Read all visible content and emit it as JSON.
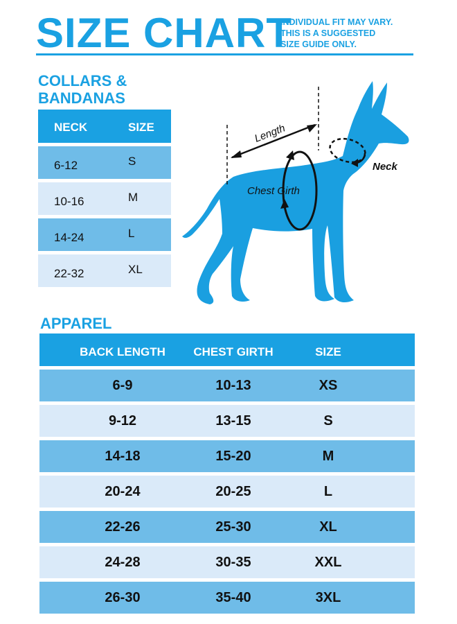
{
  "header": {
    "title": "SIZE CHART",
    "disclaimer": [
      "INDIVIDUAL FIT MAY VARY.",
      "THIS IS A SUGGESTED",
      "SIZE GUIDE ONLY."
    ]
  },
  "collars": {
    "heading": "COLLARS & BANDANAS",
    "col_neck": "NECK",
    "col_size": "SIZE",
    "rows": [
      {
        "neck": "6-12",
        "size": "S"
      },
      {
        "neck": "10-16",
        "size": "M"
      },
      {
        "neck": "14-24",
        "size": "L"
      },
      {
        "neck": "22-32",
        "size": "XL"
      }
    ]
  },
  "diagram": {
    "length_label": "Length",
    "chest_label": "Chest Girth",
    "neck_label": "Neck",
    "dog_color": "#1a9fe0"
  },
  "apparel": {
    "heading": "APPAREL",
    "col_back": "BACK LENGTH",
    "col_chest": "CHEST GIRTH",
    "col_size": "SIZE",
    "rows": [
      {
        "back": "6-9",
        "chest": "10-13",
        "size": "XS"
      },
      {
        "back": "9-12",
        "chest": "13-15",
        "size": "S"
      },
      {
        "back": "14-18",
        "chest": "15-20",
        "size": "M"
      },
      {
        "back": "20-24",
        "chest": "20-25",
        "size": "L"
      },
      {
        "back": "22-26",
        "chest": "25-30",
        "size": "XL"
      },
      {
        "back": "24-28",
        "chest": "30-35",
        "size": "XXL"
      },
      {
        "back": "26-30",
        "chest": "35-40",
        "size": "3XL"
      }
    ]
  },
  "colors": {
    "accent": "#1aa1e2",
    "row_dark": "#6fbce8",
    "row_light": "#daeaf9"
  }
}
